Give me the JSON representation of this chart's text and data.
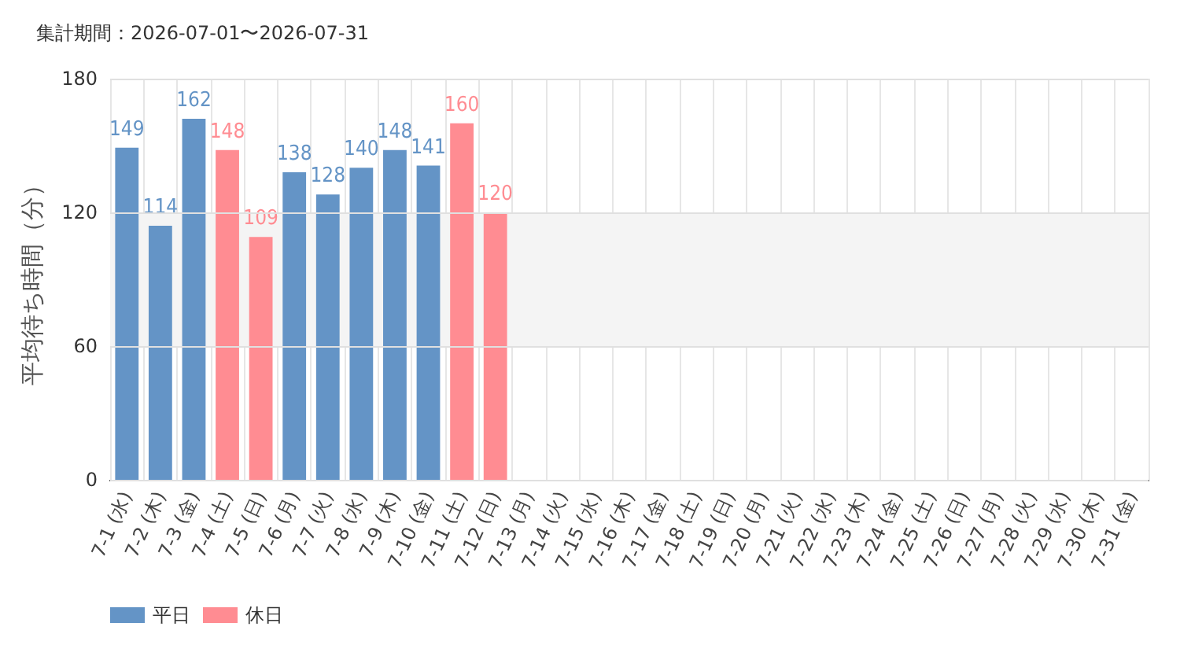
{
  "chart_data": {
    "type": "bar",
    "title": "集計期間：2026-07-01〜2026-07-31",
    "ylabel": "平均待ち時間（分）",
    "categories": [
      "7-1 (水)",
      "7-2 (木)",
      "7-3 (金)",
      "7-4 (土)",
      "7-5 (日)",
      "7-6 (月)",
      "7-7 (火)",
      "7-8 (水)",
      "7-9 (木)",
      "7-10 (金)",
      "7-11 (土)",
      "7-12 (日)",
      "7-13 (月)",
      "7-14 (火)",
      "7-15 (水)",
      "7-16 (木)",
      "7-17 (金)",
      "7-18 (土)",
      "7-19 (日)",
      "7-20 (月)",
      "7-21 (火)",
      "7-22 (水)",
      "7-23 (木)",
      "7-24 (金)",
      "7-25 (土)",
      "7-26 (日)",
      "7-27 (月)",
      "7-28 (火)",
      "7-29 (水)",
      "7-30 (木)",
      "7-31 (金)"
    ],
    "series": [
      {
        "name": "平日",
        "color": "#6494c6",
        "values": [
          149,
          114,
          162,
          null,
          null,
          138,
          128,
          140,
          148,
          141,
          null,
          null,
          null,
          null,
          null,
          null,
          null,
          null,
          null,
          null,
          null,
          null,
          null,
          null,
          null,
          null,
          null,
          null,
          null,
          null,
          null
        ]
      },
      {
        "name": "休日",
        "color": "#ff8c92",
        "values": [
          null,
          null,
          null,
          148,
          109,
          null,
          null,
          null,
          null,
          null,
          160,
          120,
          null,
          null,
          null,
          null,
          null,
          null,
          null,
          null,
          null,
          null,
          null,
          null,
          null,
          null,
          null,
          null,
          null,
          null,
          null
        ]
      }
    ],
    "stacked": true,
    "data_labels": true,
    "ylim": [
      0,
      180
    ],
    "yticks": [
      0,
      60,
      120,
      180
    ],
    "bands": [
      {
        "axis": "y",
        "from": 60,
        "to": 120,
        "color": "#f4f4f4"
      }
    ],
    "grid": true,
    "legend": "bottom left"
  }
}
